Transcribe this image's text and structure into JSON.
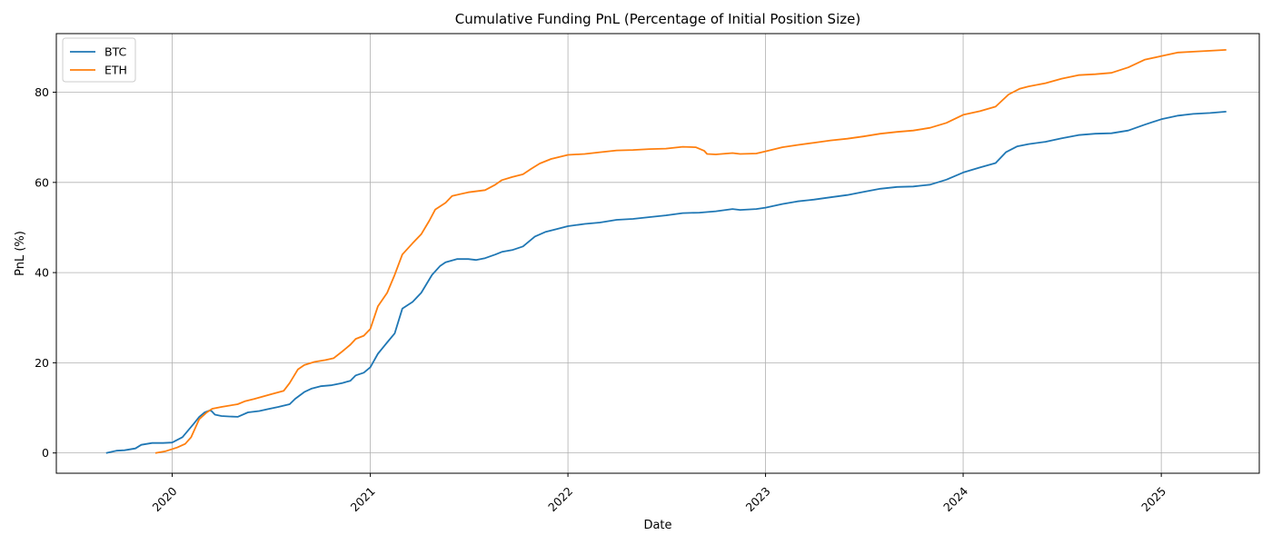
{
  "chart_data": {
    "type": "line",
    "title": "Cumulative Funding PnL (Percentage of Initial Position Size)",
    "xlabel": "Date",
    "ylabel": "PnL (%)",
    "xlim": [
      "2019-06-01",
      "2025-07-01"
    ],
    "ylim": [
      -4.5,
      93
    ],
    "x_ticks": [
      "2020-01-01",
      "2021-01-01",
      "2022-01-01",
      "2023-01-01",
      "2024-01-01",
      "2025-01-01"
    ],
    "x_tick_labels": [
      "2020",
      "2021",
      "2022",
      "2023",
      "2024",
      "2025"
    ],
    "y_ticks": [
      0,
      20,
      40,
      60,
      80
    ],
    "y_tick_labels": [
      "0",
      "20",
      "40",
      "60",
      "80"
    ],
    "grid": true,
    "legend_position": "top-left",
    "series": [
      {
        "name": "BTC",
        "color": "#1f77b4",
        "points": [
          [
            "2019-09-01",
            0
          ],
          [
            "2019-09-20",
            0.5
          ],
          [
            "2019-10-05",
            0.6
          ],
          [
            "2019-10-25",
            1.0
          ],
          [
            "2019-11-05",
            1.8
          ],
          [
            "2019-11-25",
            2.2
          ],
          [
            "2019-12-15",
            2.2
          ],
          [
            "2020-01-01",
            2.3
          ],
          [
            "2020-01-20",
            3.5
          ],
          [
            "2020-02-10",
            6.5
          ],
          [
            "2020-02-20",
            8.0
          ],
          [
            "2020-03-01",
            9.0
          ],
          [
            "2020-03-12",
            9.5
          ],
          [
            "2020-03-20",
            8.5
          ],
          [
            "2020-04-01",
            8.2
          ],
          [
            "2020-04-15",
            8.1
          ],
          [
            "2020-05-01",
            8.0
          ],
          [
            "2020-05-20",
            9.0
          ],
          [
            "2020-06-10",
            9.3
          ],
          [
            "2020-06-25",
            9.7
          ],
          [
            "2020-07-15",
            10.2
          ],
          [
            "2020-08-05",
            10.8
          ],
          [
            "2020-08-15",
            12.0
          ],
          [
            "2020-09-01",
            13.5
          ],
          [
            "2020-09-15",
            14.3
          ],
          [
            "2020-10-01",
            14.8
          ],
          [
            "2020-10-20",
            15.0
          ],
          [
            "2020-11-10",
            15.5
          ],
          [
            "2020-11-25",
            16.0
          ],
          [
            "2020-12-05",
            17.2
          ],
          [
            "2020-12-20",
            17.8
          ],
          [
            "2021-01-01",
            19.0
          ],
          [
            "2021-01-15",
            22.0
          ],
          [
            "2021-02-01",
            24.5
          ],
          [
            "2021-02-15",
            26.5
          ],
          [
            "2021-03-01",
            32.0
          ],
          [
            "2021-03-20",
            33.5
          ],
          [
            "2021-04-05",
            35.5
          ],
          [
            "2021-04-25",
            39.5
          ],
          [
            "2021-05-10",
            41.5
          ],
          [
            "2021-05-20",
            42.3
          ],
          [
            "2021-06-10",
            43.0
          ],
          [
            "2021-07-01",
            43.0
          ],
          [
            "2021-07-15",
            42.8
          ],
          [
            "2021-08-01",
            43.2
          ],
          [
            "2021-08-20",
            44.0
          ],
          [
            "2021-09-01",
            44.6
          ],
          [
            "2021-09-20",
            45.0
          ],
          [
            "2021-10-10",
            45.8
          ],
          [
            "2021-11-01",
            48.0
          ],
          [
            "2021-11-20",
            49.0
          ],
          [
            "2021-12-10",
            49.6
          ],
          [
            "2022-01-01",
            50.3
          ],
          [
            "2022-02-01",
            50.8
          ],
          [
            "2022-03-01",
            51.1
          ],
          [
            "2022-04-01",
            51.7
          ],
          [
            "2022-05-01",
            51.9
          ],
          [
            "2022-06-01",
            52.3
          ],
          [
            "2022-07-01",
            52.7
          ],
          [
            "2022-08-01",
            53.2
          ],
          [
            "2022-09-01",
            53.3
          ],
          [
            "2022-10-01",
            53.6
          ],
          [
            "2022-11-01",
            54.1
          ],
          [
            "2022-11-15",
            53.9
          ],
          [
            "2022-12-15",
            54.1
          ],
          [
            "2023-01-01",
            54.4
          ],
          [
            "2023-02-01",
            55.2
          ],
          [
            "2023-03-01",
            55.8
          ],
          [
            "2023-04-01",
            56.2
          ],
          [
            "2023-05-01",
            56.7
          ],
          [
            "2023-06-01",
            57.2
          ],
          [
            "2023-07-01",
            57.9
          ],
          [
            "2023-08-01",
            58.6
          ],
          [
            "2023-09-01",
            59.0
          ],
          [
            "2023-10-01",
            59.1
          ],
          [
            "2023-11-01",
            59.5
          ],
          [
            "2023-12-01",
            60.6
          ],
          [
            "2024-01-01",
            62.2
          ],
          [
            "2024-02-01",
            63.3
          ],
          [
            "2024-03-01",
            64.3
          ],
          [
            "2024-03-20",
            66.7
          ],
          [
            "2024-04-10",
            68.0
          ],
          [
            "2024-05-01",
            68.5
          ],
          [
            "2024-06-01",
            69.0
          ],
          [
            "2024-07-01",
            69.8
          ],
          [
            "2024-08-01",
            70.5
          ],
          [
            "2024-09-01",
            70.8
          ],
          [
            "2024-10-01",
            70.9
          ],
          [
            "2024-11-01",
            71.5
          ],
          [
            "2024-12-01",
            72.8
          ],
          [
            "2025-01-01",
            74.0
          ],
          [
            "2025-02-01",
            74.8
          ],
          [
            "2025-03-01",
            75.2
          ],
          [
            "2025-04-01",
            75.4
          ],
          [
            "2025-05-01",
            75.7
          ]
        ]
      },
      {
        "name": "ETH",
        "color": "#ff7f0e",
        "points": [
          [
            "2019-12-01",
            0
          ],
          [
            "2019-12-20",
            0.4
          ],
          [
            "2020-01-10",
            1.2
          ],
          [
            "2020-01-25",
            2.0
          ],
          [
            "2020-02-05",
            3.5
          ],
          [
            "2020-02-20",
            7.5
          ],
          [
            "2020-03-05",
            9.0
          ],
          [
            "2020-03-15",
            9.8
          ],
          [
            "2020-04-01",
            10.2
          ],
          [
            "2020-05-01",
            10.8
          ],
          [
            "2020-05-15",
            11.5
          ],
          [
            "2020-06-01",
            12.0
          ],
          [
            "2020-07-01",
            13.0
          ],
          [
            "2020-07-25",
            13.8
          ],
          [
            "2020-08-05",
            15.5
          ],
          [
            "2020-08-20",
            18.5
          ],
          [
            "2020-09-01",
            19.5
          ],
          [
            "2020-09-20",
            20.2
          ],
          [
            "2020-10-10",
            20.6
          ],
          [
            "2020-10-25",
            21.0
          ],
          [
            "2020-11-10",
            22.5
          ],
          [
            "2020-11-25",
            24.0
          ],
          [
            "2020-12-05",
            25.3
          ],
          [
            "2020-12-20",
            26.0
          ],
          [
            "2021-01-01",
            27.5
          ],
          [
            "2021-01-15",
            32.5
          ],
          [
            "2021-02-01",
            35.5
          ],
          [
            "2021-02-15",
            39.5
          ],
          [
            "2021-03-01",
            44.0
          ],
          [
            "2021-03-20",
            46.5
          ],
          [
            "2021-04-05",
            48.5
          ],
          [
            "2021-04-20",
            51.5
          ],
          [
            "2021-05-01",
            54.0
          ],
          [
            "2021-05-20",
            55.5
          ],
          [
            "2021-06-01",
            57.0
          ],
          [
            "2021-07-01",
            57.8
          ],
          [
            "2021-08-01",
            58.3
          ],
          [
            "2021-08-20",
            59.5
          ],
          [
            "2021-09-01",
            60.5
          ],
          [
            "2021-09-20",
            61.2
          ],
          [
            "2021-10-10",
            61.8
          ],
          [
            "2021-10-25",
            63.0
          ],
          [
            "2021-11-10",
            64.2
          ],
          [
            "2021-12-01",
            65.2
          ],
          [
            "2022-01-01",
            66.1
          ],
          [
            "2022-02-01",
            66.3
          ],
          [
            "2022-03-01",
            66.7
          ],
          [
            "2022-04-01",
            67.1
          ],
          [
            "2022-05-01",
            67.2
          ],
          [
            "2022-06-01",
            67.4
          ],
          [
            "2022-07-01",
            67.5
          ],
          [
            "2022-08-01",
            67.9
          ],
          [
            "2022-08-25",
            67.8
          ],
          [
            "2022-09-10",
            67.0
          ],
          [
            "2022-09-15",
            66.3
          ],
          [
            "2022-10-01",
            66.2
          ],
          [
            "2022-11-01",
            66.5
          ],
          [
            "2022-11-15",
            66.3
          ],
          [
            "2022-12-15",
            66.4
          ],
          [
            "2023-01-01",
            66.9
          ],
          [
            "2023-02-01",
            67.8
          ],
          [
            "2023-03-01",
            68.3
          ],
          [
            "2023-04-01",
            68.8
          ],
          [
            "2023-05-01",
            69.3
          ],
          [
            "2023-06-01",
            69.7
          ],
          [
            "2023-07-01",
            70.2
          ],
          [
            "2023-08-01",
            70.8
          ],
          [
            "2023-09-01",
            71.2
          ],
          [
            "2023-10-01",
            71.5
          ],
          [
            "2023-11-01",
            72.1
          ],
          [
            "2023-12-01",
            73.2
          ],
          [
            "2024-01-01",
            75.0
          ],
          [
            "2024-02-01",
            75.8
          ],
          [
            "2024-03-01",
            76.8
          ],
          [
            "2024-03-25",
            79.5
          ],
          [
            "2024-04-15",
            80.8
          ],
          [
            "2024-05-01",
            81.3
          ],
          [
            "2024-06-01",
            82.0
          ],
          [
            "2024-07-01",
            83.0
          ],
          [
            "2024-08-01",
            83.8
          ],
          [
            "2024-09-01",
            84.0
          ],
          [
            "2024-10-01",
            84.3
          ],
          [
            "2024-11-01",
            85.5
          ],
          [
            "2024-12-01",
            87.2
          ],
          [
            "2025-01-01",
            88.0
          ],
          [
            "2025-02-01",
            88.8
          ],
          [
            "2025-03-01",
            89.0
          ],
          [
            "2025-04-01",
            89.2
          ],
          [
            "2025-05-01",
            89.4
          ]
        ]
      }
    ]
  }
}
